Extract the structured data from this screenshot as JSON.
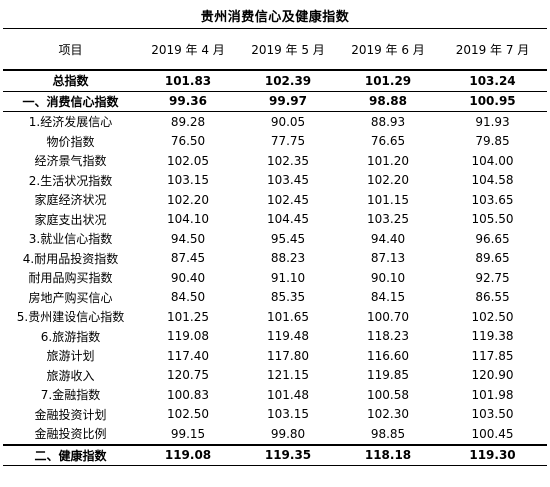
{
  "title": "贵州消费信心及健康指数",
  "header": {
    "item": "项目",
    "months": [
      "2019 年 4 月",
      "2019 年 5 月",
      "2019 年 6 月",
      "2019 年 7 月"
    ]
  },
  "rows": [
    {
      "label": "总指数",
      "values": [
        "101.83",
        "102.39",
        "101.29",
        "103.24"
      ]
    },
    {
      "label": "一、消费信心指数",
      "values": [
        "99.36",
        "99.97",
        "98.88",
        "100.95"
      ]
    },
    {
      "label": "1.经济发展信心",
      "values": [
        "89.28",
        "90.05",
        "88.93",
        "91.93"
      ]
    },
    {
      "label": "物价指数",
      "values": [
        "76.50",
        "77.75",
        "76.65",
        "79.85"
      ]
    },
    {
      "label": "经济景气指数",
      "values": [
        "102.05",
        "102.35",
        "101.20",
        "104.00"
      ]
    },
    {
      "label": "2.生活状况指数",
      "values": [
        "103.15",
        "103.45",
        "102.20",
        "104.58"
      ]
    },
    {
      "label": "家庭经济状况",
      "values": [
        "102.20",
        "102.45",
        "101.15",
        "103.65"
      ]
    },
    {
      "label": "家庭支出状况",
      "values": [
        "104.10",
        "104.45",
        "103.25",
        "105.50"
      ]
    },
    {
      "label": "3.就业信心指数",
      "values": [
        "94.50",
        "95.45",
        "94.40",
        "96.65"
      ]
    },
    {
      "label": "4.耐用品投资指数",
      "values": [
        "87.45",
        "88.23",
        "87.13",
        "89.65"
      ]
    },
    {
      "label": "耐用品购买指数",
      "values": [
        "90.40",
        "91.10",
        "90.10",
        "92.75"
      ]
    },
    {
      "label": "房地产购买信心",
      "values": [
        "84.50",
        "85.35",
        "84.15",
        "86.55"
      ]
    },
    {
      "label": "5.贵州建设信心指数",
      "values": [
        "101.25",
        "101.65",
        "100.70",
        "102.50"
      ]
    },
    {
      "label": "6.旅游指数",
      "values": [
        "119.08",
        "119.48",
        "118.23",
        "119.38"
      ]
    },
    {
      "label": "旅游计划",
      "values": [
        "117.40",
        "117.80",
        "116.60",
        "117.85"
      ]
    },
    {
      "label": "旅游收入",
      "values": [
        "120.75",
        "121.15",
        "119.85",
        "120.90"
      ]
    },
    {
      "label": "7.金融指数",
      "values": [
        "100.83",
        "101.48",
        "100.58",
        "101.98"
      ]
    },
    {
      "label": "金融投资计划",
      "values": [
        "102.50",
        "103.15",
        "102.30",
        "103.50"
      ]
    },
    {
      "label": "金融投资比例",
      "values": [
        "99.15",
        "99.80",
        "98.85",
        "100.45"
      ]
    },
    {
      "label": "二、健康指数",
      "values": [
        "119.08",
        "119.35",
        "118.18",
        "119.30"
      ]
    }
  ]
}
